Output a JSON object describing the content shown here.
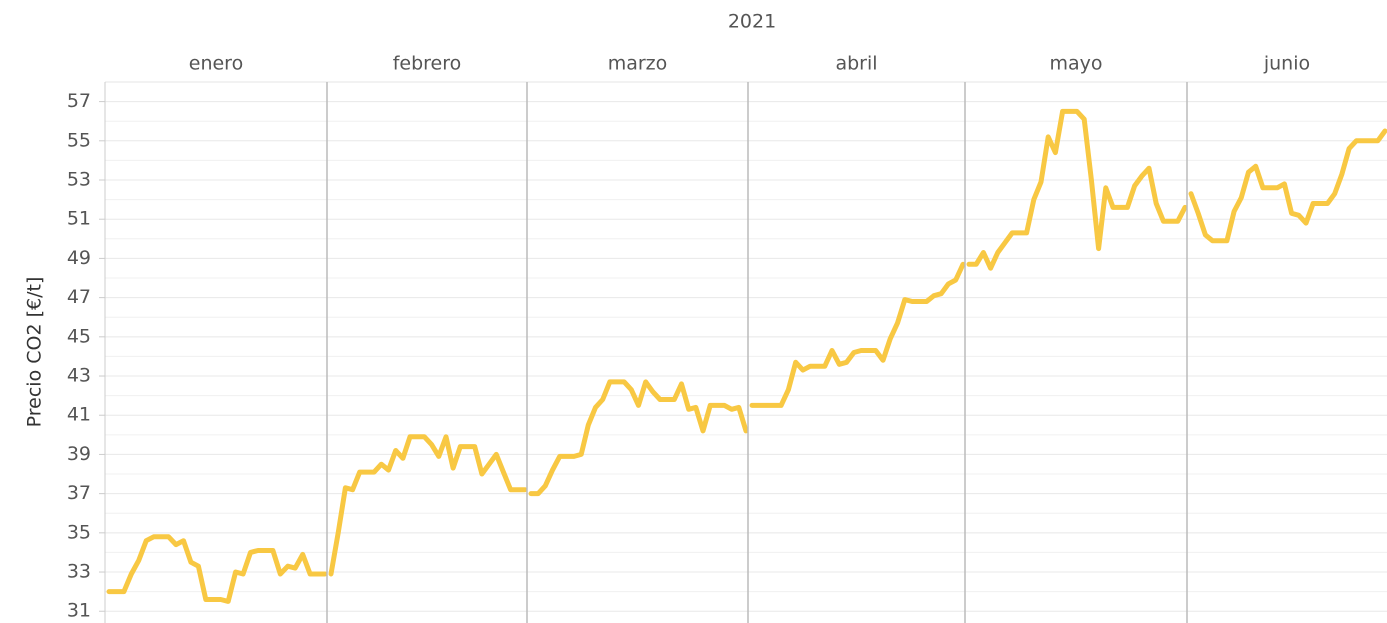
{
  "chart_data": {
    "type": "line",
    "year": "2021",
    "y_label": "Precio CO2 [€/t]",
    "color": "#f8c843",
    "grid": true,
    "ylim": [
      30.4,
      58
    ],
    "yticks": [
      31,
      33,
      35,
      37,
      39,
      41,
      43,
      45,
      47,
      49,
      51,
      53,
      55,
      57
    ],
    "yticks_minor": [
      32,
      34,
      36,
      38,
      40,
      42,
      44,
      46,
      48,
      50,
      52,
      54,
      56
    ],
    "panes": [
      {
        "name": "enero",
        "values": [
          32,
          32,
          32,
          32.9,
          33.6,
          34.6,
          34.8,
          34.8,
          34.8,
          34.4,
          34.6,
          33.5,
          33.3,
          31.6,
          31.6,
          31.6,
          31.5,
          33,
          32.9,
          34,
          34.1,
          34.1,
          34.1,
          32.9,
          33.3,
          33.2,
          33.9,
          32.9,
          32.9,
          32.9
        ]
      },
      {
        "name": "febrero",
        "values": [
          32.9,
          35,
          37.3,
          37.2,
          38.1,
          38.1,
          38.1,
          38.5,
          38.2,
          39.2,
          38.8,
          39.9,
          39.9,
          39.9,
          39.5,
          38.9,
          39.9,
          38.3,
          39.4,
          39.4,
          39.4,
          38,
          38.5,
          39,
          38.1,
          37.2,
          37.2,
          37.2
        ]
      },
      {
        "name": "marzo",
        "values": [
          37,
          37,
          37.4,
          38.2,
          38.9,
          38.9,
          38.9,
          39,
          40.5,
          41.4,
          41.8,
          42.7,
          42.7,
          42.7,
          42.3,
          41.5,
          42.7,
          42.2,
          41.8,
          41.8,
          41.8,
          42.6,
          41.3,
          41.4,
          40.2,
          41.5,
          41.5,
          41.5,
          41.3,
          41.4,
          40.2
        ]
      },
      {
        "name": "abril",
        "values": [
          41.5,
          41.5,
          41.5,
          41.5,
          41.5,
          42.3,
          43.7,
          43.3,
          43.5,
          43.5,
          43.5,
          44.3,
          43.6,
          43.7,
          44.2,
          44.3,
          44.3,
          44.3,
          43.8,
          44.9,
          45.7,
          46.9,
          46.8,
          46.8,
          46.8,
          47.1,
          47.2,
          47.7,
          47.9,
          48.7
        ]
      },
      {
        "name": "mayo",
        "values": [
          48.7,
          48.7,
          49.3,
          48.5,
          49.3,
          49.8,
          50.3,
          50.3,
          50.3,
          52,
          52.9,
          55.2,
          54.4,
          56.5,
          56.5,
          56.5,
          56.1,
          53,
          49.5,
          52.6,
          51.6,
          51.6,
          51.6,
          52.7,
          53.2,
          53.6,
          51.8,
          50.9,
          50.9,
          50.9,
          51.6
        ]
      },
      {
        "name": "junio",
        "values": [
          52.3,
          51.3,
          50.2,
          49.9,
          49.9,
          49.9,
          51.4,
          52.1,
          53.4,
          53.7,
          52.6,
          52.6,
          52.6,
          52.8,
          51.3,
          51.2,
          50.8,
          51.8,
          51.8,
          51.8,
          52.3,
          53.3,
          54.6,
          55,
          55,
          55,
          55,
          55.5
        ]
      }
    ]
  }
}
